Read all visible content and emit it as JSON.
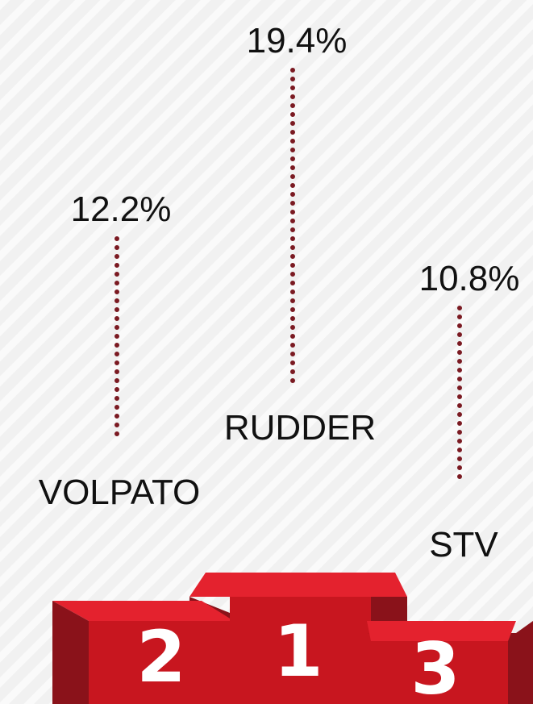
{
  "chart_data": {
    "type": "podium",
    "categories": [
      "VOLPATO",
      "RUDDER",
      "STV"
    ],
    "values": [
      12.2,
      19.4,
      10.8
    ],
    "value_labels": [
      "12.2%",
      "19.4%",
      "10.8%"
    ],
    "ranks": [
      2,
      1,
      3
    ],
    "color": "#7b1a22"
  }
}
